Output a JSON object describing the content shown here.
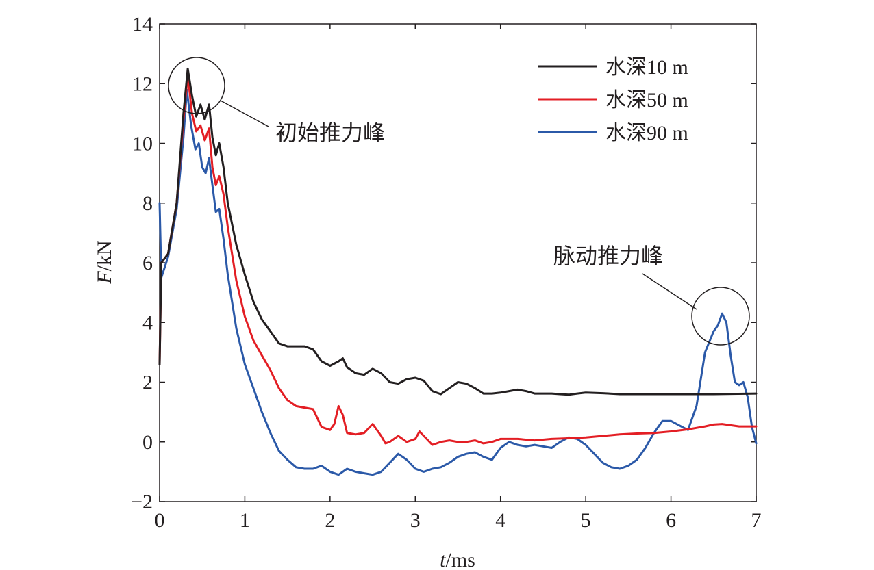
{
  "chart_data": {
    "type": "line",
    "title": "",
    "xlabel": "t/ms",
    "xlabel_parts": {
      "var": "t",
      "unit": "/ms"
    },
    "ylabel": "F/kN",
    "ylabel_parts": {
      "var": "F",
      "unit": "/kN"
    },
    "xlim": [
      0,
      7
    ],
    "ylim": [
      -2,
      14
    ],
    "xticks": [
      0,
      1,
      2,
      3,
      4,
      5,
      6,
      7
    ],
    "yticks": [
      -2,
      0,
      2,
      4,
      6,
      8,
      10,
      12,
      14
    ],
    "xtick_labels": [
      "0",
      "1",
      "2",
      "3",
      "4",
      "5",
      "6",
      "7"
    ],
    "ytick_labels": [
      "−2",
      "0",
      "2",
      "4",
      "6",
      "8",
      "10",
      "12",
      "14"
    ],
    "grid": false,
    "legend_position": "top-right",
    "series": [
      {
        "name": "水深10 m",
        "color": "#231f20",
        "points": [
          [
            0,
            2.6
          ],
          [
            0.02,
            6.0
          ],
          [
            0.1,
            6.3
          ],
          [
            0.2,
            8.0
          ],
          [
            0.28,
            11.0
          ],
          [
            0.33,
            12.5
          ],
          [
            0.38,
            11.6
          ],
          [
            0.43,
            10.9
          ],
          [
            0.48,
            11.3
          ],
          [
            0.53,
            10.8
          ],
          [
            0.58,
            11.3
          ],
          [
            0.62,
            10.2
          ],
          [
            0.66,
            9.6
          ],
          [
            0.7,
            10.0
          ],
          [
            0.75,
            9.2
          ],
          [
            0.8,
            8.0
          ],
          [
            0.9,
            6.6
          ],
          [
            1.0,
            5.6
          ],
          [
            1.1,
            4.7
          ],
          [
            1.2,
            4.1
          ],
          [
            1.3,
            3.7
          ],
          [
            1.4,
            3.3
          ],
          [
            1.5,
            3.2
          ],
          [
            1.6,
            3.2
          ],
          [
            1.7,
            3.2
          ],
          [
            1.8,
            3.1
          ],
          [
            1.9,
            2.7
          ],
          [
            2.0,
            2.55
          ],
          [
            2.1,
            2.7
          ],
          [
            2.15,
            2.8
          ],
          [
            2.2,
            2.5
          ],
          [
            2.3,
            2.3
          ],
          [
            2.4,
            2.25
          ],
          [
            2.5,
            2.45
          ],
          [
            2.6,
            2.3
          ],
          [
            2.7,
            2.0
          ],
          [
            2.8,
            1.95
          ],
          [
            2.9,
            2.1
          ],
          [
            3.0,
            2.15
          ],
          [
            3.1,
            2.05
          ],
          [
            3.2,
            1.7
          ],
          [
            3.3,
            1.6
          ],
          [
            3.4,
            1.8
          ],
          [
            3.5,
            2.0
          ],
          [
            3.6,
            1.95
          ],
          [
            3.7,
            1.8
          ],
          [
            3.8,
            1.62
          ],
          [
            3.9,
            1.62
          ],
          [
            4.0,
            1.65
          ],
          [
            4.1,
            1.7
          ],
          [
            4.2,
            1.75
          ],
          [
            4.3,
            1.7
          ],
          [
            4.4,
            1.62
          ],
          [
            4.5,
            1.62
          ],
          [
            4.6,
            1.62
          ],
          [
            4.7,
            1.6
          ],
          [
            4.8,
            1.58
          ],
          [
            4.9,
            1.62
          ],
          [
            5.0,
            1.65
          ],
          [
            5.2,
            1.63
          ],
          [
            5.4,
            1.6
          ],
          [
            5.6,
            1.6
          ],
          [
            5.8,
            1.6
          ],
          [
            6.0,
            1.6
          ],
          [
            6.5,
            1.6
          ],
          [
            7.0,
            1.62
          ]
        ]
      },
      {
        "name": "水深50 m",
        "color": "#e31e24",
        "points": [
          [
            0,
            2.6
          ],
          [
            0.02,
            6.0
          ],
          [
            0.1,
            6.3
          ],
          [
            0.2,
            8.0
          ],
          [
            0.28,
            10.8
          ],
          [
            0.33,
            12.3
          ],
          [
            0.38,
            11.0
          ],
          [
            0.43,
            10.4
          ],
          [
            0.48,
            10.6
          ],
          [
            0.53,
            10.1
          ],
          [
            0.58,
            10.5
          ],
          [
            0.62,
            9.2
          ],
          [
            0.66,
            8.6
          ],
          [
            0.7,
            8.9
          ],
          [
            0.75,
            8.3
          ],
          [
            0.8,
            7.2
          ],
          [
            0.9,
            5.4
          ],
          [
            1.0,
            4.2
          ],
          [
            1.1,
            3.4
          ],
          [
            1.2,
            2.9
          ],
          [
            1.3,
            2.4
          ],
          [
            1.4,
            1.8
          ],
          [
            1.5,
            1.4
          ],
          [
            1.6,
            1.2
          ],
          [
            1.7,
            1.15
          ],
          [
            1.8,
            1.1
          ],
          [
            1.9,
            0.5
          ],
          [
            2.0,
            0.4
          ],
          [
            2.05,
            0.6
          ],
          [
            2.1,
            1.2
          ],
          [
            2.15,
            0.9
          ],
          [
            2.2,
            0.3
          ],
          [
            2.3,
            0.25
          ],
          [
            2.4,
            0.3
          ],
          [
            2.5,
            0.6
          ],
          [
            2.6,
            0.2
          ],
          [
            2.65,
            -0.05
          ],
          [
            2.7,
            0.0
          ],
          [
            2.8,
            0.2
          ],
          [
            2.9,
            0.0
          ],
          [
            3.0,
            0.1
          ],
          [
            3.05,
            0.35
          ],
          [
            3.1,
            0.2
          ],
          [
            3.2,
            -0.1
          ],
          [
            3.3,
            0.0
          ],
          [
            3.4,
            0.05
          ],
          [
            3.5,
            0.0
          ],
          [
            3.6,
            0.0
          ],
          [
            3.7,
            0.05
          ],
          [
            3.8,
            -0.05
          ],
          [
            3.9,
            0.0
          ],
          [
            4.0,
            0.1
          ],
          [
            4.2,
            0.1
          ],
          [
            4.4,
            0.05
          ],
          [
            4.6,
            0.1
          ],
          [
            4.8,
            0.12
          ],
          [
            5.0,
            0.15
          ],
          [
            5.2,
            0.2
          ],
          [
            5.4,
            0.25
          ],
          [
            5.6,
            0.28
          ],
          [
            5.8,
            0.3
          ],
          [
            6.0,
            0.35
          ],
          [
            6.2,
            0.42
          ],
          [
            6.4,
            0.52
          ],
          [
            6.5,
            0.58
          ],
          [
            6.6,
            0.6
          ],
          [
            6.8,
            0.52
          ],
          [
            7.0,
            0.52
          ]
        ]
      },
      {
        "name": "水深90 m",
        "color": "#2b59a8",
        "points": [
          [
            0,
            8.0
          ],
          [
            0.02,
            5.5
          ],
          [
            0.1,
            6.2
          ],
          [
            0.2,
            7.8
          ],
          [
            0.28,
            10.2
          ],
          [
            0.32,
            11.8
          ],
          [
            0.37,
            10.6
          ],
          [
            0.42,
            9.8
          ],
          [
            0.46,
            10.0
          ],
          [
            0.5,
            9.2
          ],
          [
            0.54,
            9.0
          ],
          [
            0.58,
            9.5
          ],
          [
            0.62,
            8.6
          ],
          [
            0.66,
            7.7
          ],
          [
            0.7,
            7.8
          ],
          [
            0.75,
            6.8
          ],
          [
            0.8,
            5.6
          ],
          [
            0.9,
            3.8
          ],
          [
            1.0,
            2.6
          ],
          [
            1.1,
            1.8
          ],
          [
            1.2,
            1.0
          ],
          [
            1.3,
            0.3
          ],
          [
            1.4,
            -0.3
          ],
          [
            1.5,
            -0.6
          ],
          [
            1.6,
            -0.85
          ],
          [
            1.7,
            -0.9
          ],
          [
            1.8,
            -0.9
          ],
          [
            1.9,
            -0.8
          ],
          [
            2.0,
            -1.0
          ],
          [
            2.1,
            -1.1
          ],
          [
            2.2,
            -0.9
          ],
          [
            2.3,
            -1.0
          ],
          [
            2.4,
            -1.05
          ],
          [
            2.5,
            -1.1
          ],
          [
            2.6,
            -1.0
          ],
          [
            2.7,
            -0.7
          ],
          [
            2.8,
            -0.4
          ],
          [
            2.9,
            -0.6
          ],
          [
            3.0,
            -0.9
          ],
          [
            3.1,
            -1.0
          ],
          [
            3.2,
            -0.9
          ],
          [
            3.3,
            -0.85
          ],
          [
            3.4,
            -0.7
          ],
          [
            3.5,
            -0.5
          ],
          [
            3.6,
            -0.4
          ],
          [
            3.7,
            -0.35
          ],
          [
            3.8,
            -0.5
          ],
          [
            3.9,
            -0.6
          ],
          [
            4.0,
            -0.2
          ],
          [
            4.1,
            0.0
          ],
          [
            4.2,
            -0.1
          ],
          [
            4.3,
            -0.15
          ],
          [
            4.4,
            -0.1
          ],
          [
            4.5,
            -0.15
          ],
          [
            4.6,
            -0.2
          ],
          [
            4.7,
            0.0
          ],
          [
            4.8,
            0.15
          ],
          [
            4.9,
            0.1
          ],
          [
            5.0,
            -0.1
          ],
          [
            5.1,
            -0.4
          ],
          [
            5.2,
            -0.7
          ],
          [
            5.3,
            -0.85
          ],
          [
            5.4,
            -0.9
          ],
          [
            5.5,
            -0.8
          ],
          [
            5.6,
            -0.6
          ],
          [
            5.7,
            -0.2
          ],
          [
            5.8,
            0.3
          ],
          [
            5.9,
            0.7
          ],
          [
            6.0,
            0.7
          ],
          [
            6.1,
            0.55
          ],
          [
            6.2,
            0.4
          ],
          [
            6.3,
            1.2
          ],
          [
            6.4,
            3.0
          ],
          [
            6.5,
            3.7
          ],
          [
            6.55,
            3.9
          ],
          [
            6.6,
            4.3
          ],
          [
            6.65,
            4.0
          ],
          [
            6.7,
            2.9
          ],
          [
            6.75,
            2.0
          ],
          [
            6.8,
            1.9
          ],
          [
            6.85,
            2.0
          ],
          [
            6.9,
            1.5
          ],
          [
            6.95,
            0.5
          ],
          [
            7.0,
            -0.05
          ]
        ]
      }
    ],
    "annotations": [
      {
        "text": "初始推力峰"
      },
      {
        "text": "脉动推力峰"
      }
    ]
  }
}
